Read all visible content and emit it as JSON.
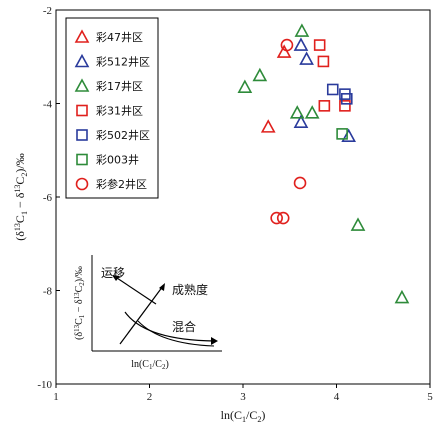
{
  "chart_data": {
    "type": "scatter",
    "xlabel": "ln(C1/C2)",
    "ylabel": "(δ13C1 − δ13C2)/‰",
    "xlim": [
      1,
      5
    ],
    "ylim": [
      -10,
      -2
    ],
    "xticks": [
      1,
      2,
      3,
      4,
      5
    ],
    "yticks": [
      -2,
      -4,
      -6,
      -8,
      -10
    ],
    "grid": false,
    "legend_position": "top-left",
    "series": [
      {
        "name": "彩47井区",
        "marker": "triangle",
        "color": "#e0201d",
        "points": [
          {
            "x": 3.27,
            "y": -4.5
          },
          {
            "x": 3.44,
            "y": -2.9
          }
        ]
      },
      {
        "name": "彩512井区",
        "marker": "triangle",
        "color": "#2a3b9c",
        "points": [
          {
            "x": 3.62,
            "y": -2.75
          },
          {
            "x": 3.62,
            "y": -4.4
          },
          {
            "x": 3.68,
            "y": -3.05
          },
          {
            "x": 4.13,
            "y": -4.7
          }
        ]
      },
      {
        "name": "彩17井区",
        "marker": "triangle",
        "color": "#2e8b3a",
        "points": [
          {
            "x": 3.63,
            "y": -2.45
          },
          {
            "x": 3.18,
            "y": -3.4
          },
          {
            "x": 3.02,
            "y": -3.65
          },
          {
            "x": 3.58,
            "y": -4.2
          },
          {
            "x": 3.74,
            "y": -4.2
          },
          {
            "x": 4.23,
            "y": -6.6
          },
          {
            "x": 4.7,
            "y": -8.15
          }
        ]
      },
      {
        "name": "彩31井区",
        "marker": "square",
        "color": "#e0201d",
        "points": [
          {
            "x": 3.82,
            "y": -2.75
          },
          {
            "x": 3.86,
            "y": -3.1
          },
          {
            "x": 3.87,
            "y": -4.05
          },
          {
            "x": 4.09,
            "y": -4.05
          }
        ]
      },
      {
        "name": "彩502井区",
        "marker": "square",
        "color": "#2a3b9c",
        "points": [
          {
            "x": 3.96,
            "y": -3.7
          },
          {
            "x": 4.09,
            "y": -3.8
          },
          {
            "x": 4.11,
            "y": -3.9
          }
        ]
      },
      {
        "name": "彩003井",
        "marker": "square",
        "color": "#2e8b3a",
        "points": [
          {
            "x": 4.06,
            "y": -4.65
          }
        ]
      },
      {
        "name": "彩参2井区",
        "marker": "circle",
        "color": "#e0201d",
        "points": [
          {
            "x": 3.47,
            "y": -2.75
          },
          {
            "x": 3.61,
            "y": -5.7
          },
          {
            "x": 3.36,
            "y": -6.45
          },
          {
            "x": 3.43,
            "y": -6.45
          }
        ]
      }
    ],
    "inset": {
      "xlabel": "ln(C1/C2)",
      "ylabel": "(δ13C1 − δ13C2)/‰",
      "labels": {
        "migration": "运移",
        "maturity": "成熟度",
        "mixing": "混合"
      }
    }
  }
}
